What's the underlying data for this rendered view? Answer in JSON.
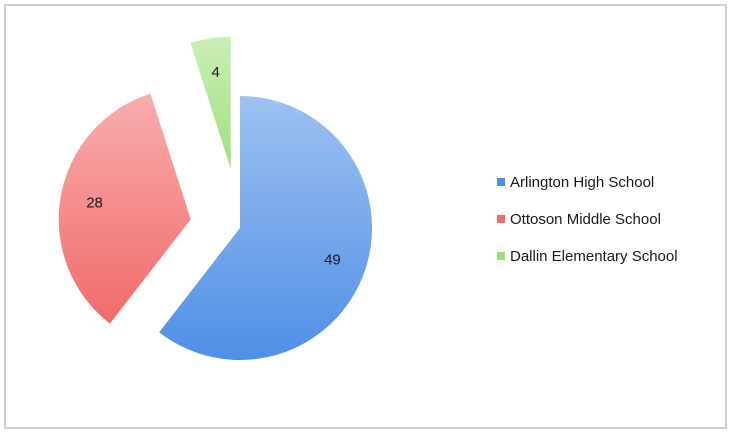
{
  "chart_data": {
    "type": "pie",
    "title": "",
    "categories": [
      "Arlington High School",
      "Ottoson Middle School",
      "Dallin Elementary School"
    ],
    "values": [
      49,
      28,
      4
    ],
    "colors": [
      "#4f8fe6",
      "#f26a6a",
      "#9fe07a"
    ],
    "data_labels": [
      "49",
      "28",
      "4"
    ],
    "exploded": true,
    "legend_position": "right"
  }
}
